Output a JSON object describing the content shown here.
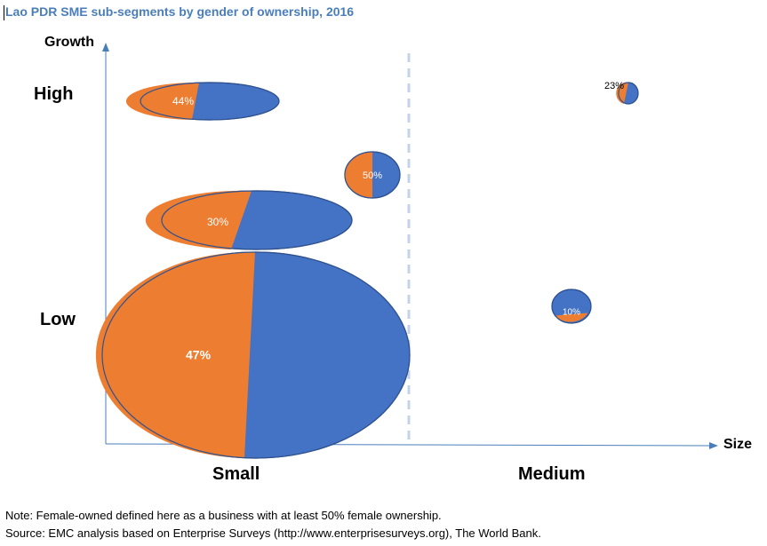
{
  "chart_data": {
    "type": "bubble",
    "title": "Lao PDR SME sub-segments by gender of ownership, 2016",
    "xlabel": "Size",
    "ylabel": "Growth",
    "x_categories": [
      "Small",
      "Medium"
    ],
    "y_categories": [
      "Low",
      "High"
    ],
    "divider": "dashed vertical line between Small and Medium",
    "colors": {
      "female": "#ed7d31",
      "male": "#4472c4",
      "axis": "#4a7ebb",
      "divider": "#c5d3e8"
    },
    "bubbles": [
      {
        "size": "Small",
        "growth": "High",
        "female_share": 44,
        "label": "44%"
      },
      {
        "size": "Small",
        "growth": "High",
        "female_share": 50,
        "label": "50%"
      },
      {
        "size": "Small",
        "growth": "Low",
        "female_share": 30,
        "label": "30%"
      },
      {
        "size": "Small",
        "growth": "Low",
        "female_share": 47,
        "label": "47%"
      },
      {
        "size": "Medium",
        "growth": "High",
        "female_share": 23,
        "label": "23%"
      },
      {
        "size": "Medium",
        "growth": "Low",
        "female_share": 10,
        "label": "10%"
      }
    ]
  },
  "notes": {
    "note": "Note: Female-owned defined here as a business with at least 50% female ownership.",
    "source": "Source: EMC analysis based on Enterprise Surveys (http://www.enterprisesurveys.org), The World Bank."
  }
}
